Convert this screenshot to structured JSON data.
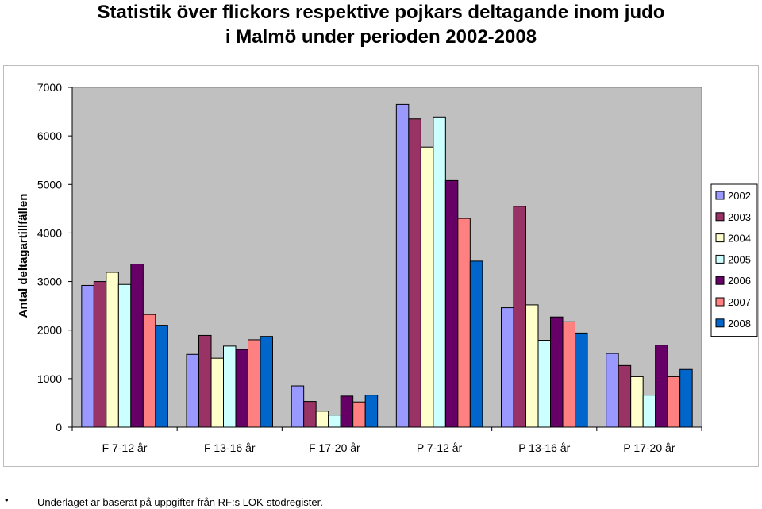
{
  "title": {
    "line1": "Statistik över flickors respektive pojkars deltagande inom judo",
    "line2": "i Malmö under perioden 2002-2008"
  },
  "chart_data": {
    "type": "bar",
    "ylabel": "Antal deltagartillfällen",
    "ylim": [
      0,
      7000
    ],
    "yticks": [
      "0",
      "1000",
      "2000",
      "3000",
      "4000",
      "5000",
      "6000",
      "7000"
    ],
    "categories": [
      "F 7-12 år",
      "F 13-16 år",
      "F 17-20 år",
      "P 7-12 år",
      "P 13-16 år",
      "P 17-20 år"
    ],
    "legend_position": "right",
    "grid": false,
    "series": [
      {
        "name": "2002",
        "color": "#9999ff",
        "values": [
          2920,
          1500,
          850,
          6650,
          2460,
          1520
        ]
      },
      {
        "name": "2003",
        "color": "#993366",
        "values": [
          3000,
          1890,
          530,
          6350,
          4550,
          1270
        ]
      },
      {
        "name": "2004",
        "color": "#ffffcc",
        "values": [
          3190,
          1420,
          330,
          5770,
          2520,
          1040
        ]
      },
      {
        "name": "2005",
        "color": "#ccffff",
        "values": [
          2940,
          1670,
          250,
          6390,
          1790,
          660
        ]
      },
      {
        "name": "2006",
        "color": "#660066",
        "values": [
          3360,
          1600,
          640,
          5080,
          2270,
          1690
        ]
      },
      {
        "name": "2007",
        "color": "#ff8080",
        "values": [
          2320,
          1800,
          520,
          4300,
          2170,
          1040
        ]
      },
      {
        "name": "2008",
        "color": "#0066cc",
        "values": [
          2100,
          1870,
          660,
          3420,
          1940,
          1190
        ]
      }
    ]
  },
  "footnote": {
    "bullet": "•",
    "text": "Underlaget är baserat på uppgifter från RF:s LOK-stödregister."
  }
}
